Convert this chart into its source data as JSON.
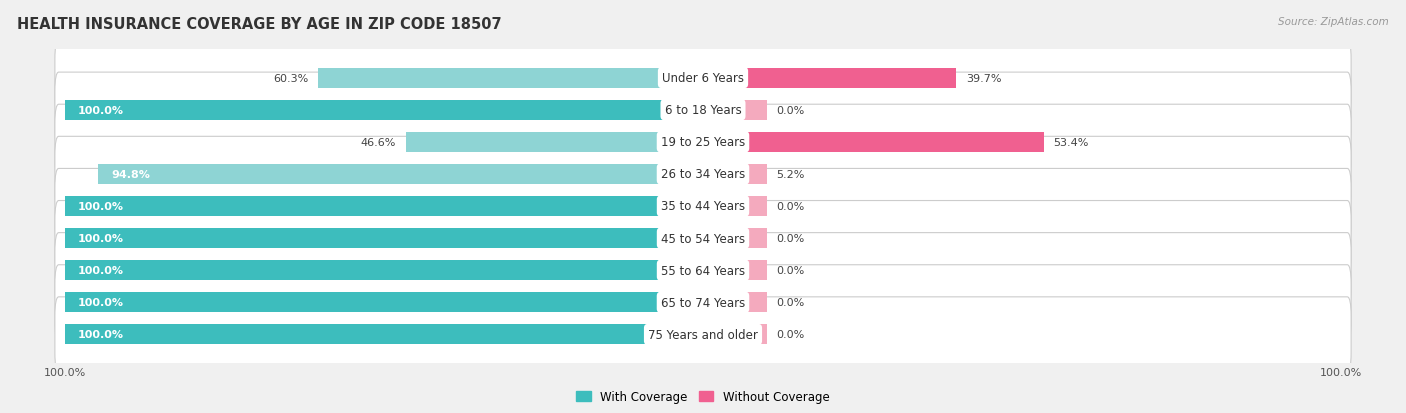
{
  "title": "HEALTH INSURANCE COVERAGE BY AGE IN ZIP CODE 18507",
  "source": "Source: ZipAtlas.com",
  "categories": [
    "Under 6 Years",
    "6 to 18 Years",
    "19 to 25 Years",
    "26 to 34 Years",
    "35 to 44 Years",
    "45 to 54 Years",
    "55 to 64 Years",
    "65 to 74 Years",
    "75 Years and older"
  ],
  "with_coverage": [
    60.3,
    100.0,
    46.6,
    94.8,
    100.0,
    100.0,
    100.0,
    100.0,
    100.0
  ],
  "without_coverage": [
    39.7,
    0.0,
    53.4,
    5.2,
    0.0,
    0.0,
    0.0,
    0.0,
    0.0
  ],
  "color_with": "#3DBDBD",
  "color_without": "#F06090",
  "color_with_light": "#8ED4D4",
  "color_without_light": "#F4AABE",
  "bg_color": "#F0F0F0",
  "row_bg": "#FFFFFF",
  "row_border": "#CCCCCC",
  "legend_with": "With Coverage",
  "legend_without": "Without Coverage",
  "title_fontsize": 10.5,
  "label_fontsize": 8.5,
  "value_fontsize": 8.0,
  "stub_size": 10.0,
  "x_min": -100,
  "x_max": 100
}
